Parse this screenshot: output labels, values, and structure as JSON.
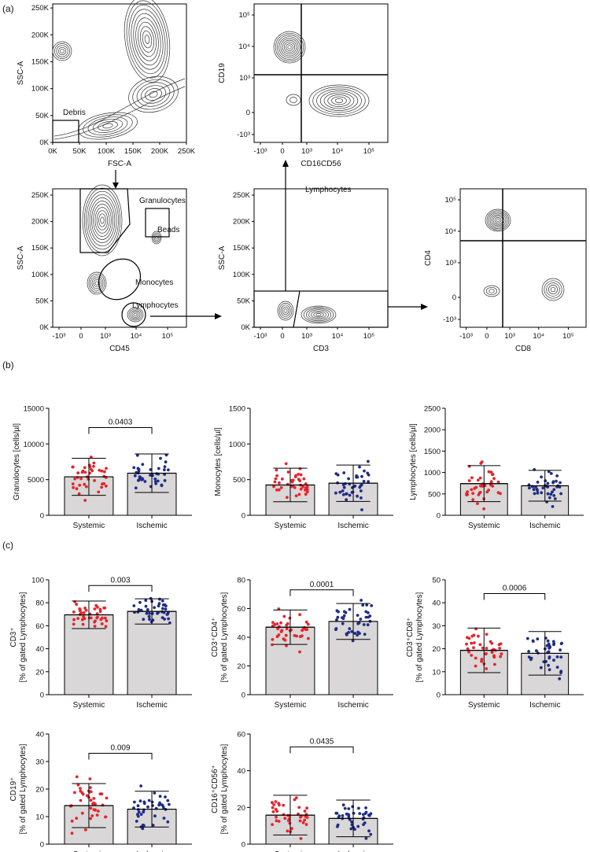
{
  "panel_labels": [
    "(a)",
    "(b)",
    "(c)"
  ],
  "flow_plots": [
    {
      "id": "fsc-ssc",
      "xlabel": "FSC-A",
      "ylabel": "SSC-A",
      "xticks": [
        "0K",
        "50K",
        "100K",
        "150K",
        "200K",
        "250K"
      ],
      "yticks": [
        "0K",
        "50K",
        "100K",
        "150K",
        "200K",
        "250K"
      ],
      "gates": [
        "Debris"
      ]
    },
    {
      "id": "cd16-cd19",
      "xlabel": "CD16CD56",
      "ylabel": "CD19",
      "xticks": [
        "-10³",
        "0",
        "10³",
        "10⁴",
        "10⁵"
      ],
      "yticks": [
        "10⁵",
        "10⁴",
        "10³",
        "0",
        "-10³"
      ],
      "gates": []
    },
    {
      "id": "cd45-ssc",
      "xlabel": "CD45",
      "ylabel": "SSC-A",
      "xticks": [
        "-10³",
        "0",
        "10³",
        "10⁴",
        "10⁵"
      ],
      "yticks": [
        "250K",
        "200K",
        "150K",
        "100K",
        "50K",
        "0K"
      ],
      "gates": [
        "Granulocytes",
        "Beads",
        "Monocytes",
        "Lymphocytes"
      ]
    },
    {
      "id": "cd3-ssc",
      "xlabel": "CD3",
      "ylabel": "SSC-A",
      "xticks": [
        "-10³",
        "0",
        "10³",
        "10⁴",
        "10⁵"
      ],
      "yticks": [
        "250K",
        "200K",
        "150K",
        "100K",
        "50K",
        "0K"
      ],
      "gates": [
        "Lymphocytes"
      ]
    },
    {
      "id": "cd8-cd4",
      "xlabel": "CD8",
      "ylabel": "CD4",
      "xticks": [
        "-10³",
        "0",
        "10³",
        "10⁴",
        "10⁵"
      ],
      "yticks": [
        "10⁵",
        "10⁴",
        "10³",
        "0",
        "-10³"
      ],
      "gates": []
    }
  ],
  "chart_data": [
    {
      "type": "bar",
      "panel": "b",
      "ylabel": "Granulocytes [cells/µl]",
      "categories": [
        "Systemic",
        "Ischemic"
      ],
      "values": [
        5400,
        5900
      ],
      "sd": [
        2600,
        2700
      ],
      "ylim": [
        0,
        15000
      ],
      "yticks": [
        "0",
        "5000",
        "10000",
        "15000"
      ],
      "pvalue": "0.0403",
      "colors": [
        "#e8232a",
        "#1f2d86"
      ]
    },
    {
      "type": "bar",
      "panel": "b",
      "ylabel": "Monocytes [cells/µl]",
      "categories": [
        "Systemic",
        "Ischemic"
      ],
      "values": [
        425,
        450
      ],
      "sd": [
        235,
        255
      ],
      "ylim": [
        0,
        1500
      ],
      "yticks": [
        "0",
        "500",
        "1000",
        "1500"
      ],
      "pvalue": "",
      "colors": [
        "#e8232a",
        "#1f2d86"
      ]
    },
    {
      "type": "bar",
      "panel": "b",
      "ylabel": "Lymphocytes [cells/µl]",
      "categories": [
        "Systemic",
        "Ischemic"
      ],
      "values": [
        740,
        690
      ],
      "sd": [
        420,
        360
      ],
      "ylim": [
        0,
        2500
      ],
      "yticks": [
        "0",
        "500",
        "1000",
        "1500",
        "2000",
        "2500"
      ],
      "pvalue": "",
      "colors": [
        "#e8232a",
        "#1f2d86"
      ]
    },
    {
      "type": "bar",
      "panel": "c",
      "ylabel": "CD3⁺",
      "ylabel2": "[% of gated Lymphocytes]",
      "categories": [
        "Systemic",
        "Ischemic"
      ],
      "values": [
        69.5,
        72.5
      ],
      "sd": [
        12,
        11
      ],
      "ylim": [
        0,
        100
      ],
      "yticks": [
        "0",
        "20",
        "40",
        "60",
        "80",
        "100"
      ],
      "pvalue": "0.003",
      "colors": [
        "#e8232a",
        "#1f2d86"
      ]
    },
    {
      "type": "bar",
      "panel": "c",
      "ylabel": "CD3⁺CD4⁺",
      "ylabel2": "[% of gated Lymphocytes]",
      "categories": [
        "Systemic",
        "Ischemic"
      ],
      "values": [
        47,
        51
      ],
      "sd": [
        12,
        12.5
      ],
      "ylim": [
        0,
        80
      ],
      "yticks": [
        "0",
        "20",
        "40",
        "60",
        "80"
      ],
      "pvalue": "0.0001",
      "colors": [
        "#e8232a",
        "#1f2d86"
      ]
    },
    {
      "type": "bar",
      "panel": "c",
      "ylabel": "CD3⁺CD8⁺",
      "ylabel2": "[% of gated Lymphocytes]",
      "categories": [
        "Systemic",
        "Ischemic"
      ],
      "values": [
        19.3,
        18
      ],
      "sd": [
        9.7,
        9.5
      ],
      "ylim": [
        0,
        50
      ],
      "yticks": [
        "0",
        "10",
        "20",
        "30",
        "40",
        "50"
      ],
      "pvalue": "0.0006",
      "colors": [
        "#e8232a",
        "#1f2d86"
      ]
    },
    {
      "type": "bar",
      "panel": "c",
      "ylabel": "CD19⁺",
      "ylabel2": "[% of gated Lymphocytes]",
      "categories": [
        "Systemic",
        "Ischemic"
      ],
      "values": [
        14,
        12.7
      ],
      "sd": [
        8,
        6.5
      ],
      "ylim": [
        0,
        40
      ],
      "yticks": [
        "0",
        "10",
        "20",
        "30",
        "40"
      ],
      "pvalue": "0.009",
      "colors": [
        "#e8232a",
        "#1f2d86"
      ]
    },
    {
      "type": "bar",
      "panel": "c",
      "ylabel": "CD16⁺CD56⁺",
      "ylabel2": "[% of gated Lymphocytes]",
      "categories": [
        "Systemic",
        "Ischemic"
      ],
      "values": [
        15.8,
        14
      ],
      "sd": [
        10.8,
        10
      ],
      "ylim": [
        0,
        60
      ],
      "yticks": [
        "0",
        "20",
        "40",
        "60"
      ],
      "pvalue": "0.0435",
      "colors": [
        "#e8232a",
        "#1f2d86"
      ]
    }
  ]
}
